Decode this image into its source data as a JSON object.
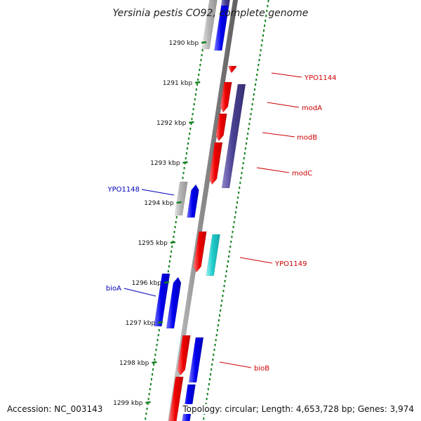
{
  "title": "Yersinia pestis CO92, complete genome",
  "accession": "Accession: NC_003143",
  "summary": "Topology: circular; Length: 4,653,728 bp; Genes: 3,974",
  "ticks": [
    "1290 kbp",
    "1291 kbp",
    "1292 kbp",
    "1293 kbp",
    "1294 kbp",
    "1295 kbp",
    "1296 kbp",
    "1297 kbp",
    "1298 kbp",
    "1299 kbp"
  ],
  "colors": {
    "forward_gene": "#ee0000",
    "reverse_gene": "#0000ee",
    "dark_gene": "#4a4294",
    "cyan_gene": "#22cccc",
    "gray_gene": "#b4b4b4",
    "backbone": "#888888",
    "tick": "#11801c",
    "label_right": "#cc0000",
    "label_left": "#0000bb"
  },
  "gene_labels": {
    "YPO1144": "YPO1144",
    "modA": "modA",
    "modB": "modB",
    "modC": "modC",
    "YPO1148": "YPO1148",
    "YPO1149": "YPO1149",
    "bioA": "bioA",
    "bioB": "bioB"
  }
}
